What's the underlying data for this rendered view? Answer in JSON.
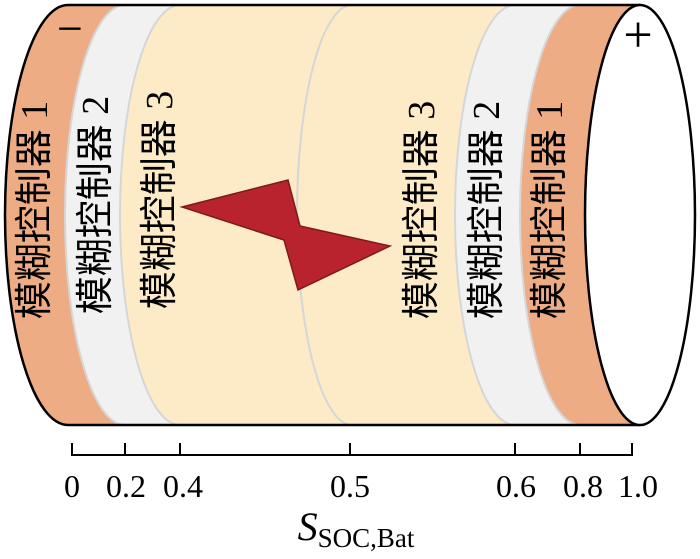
{
  "battery": {
    "negative_terminal": "−",
    "positive_terminal": "+"
  },
  "zones_left": [
    "模糊控制器 1",
    "模糊控制器 2",
    "模糊控制器 3"
  ],
  "zones_right": [
    "模糊控制器 3",
    "模糊控制器 2",
    "模糊控制器 1"
  ],
  "axis": {
    "ticks": [
      "0",
      "0.2",
      "0.4",
      "0.5",
      "0.6",
      "0.8",
      "1.0"
    ],
    "label": {
      "symbol": "S",
      "subscript": "SOC,Bat"
    }
  },
  "icons": {
    "center": "lightning-bolt-icon"
  },
  "colors": {
    "zone1": "#eeac85",
    "zone2": "#f1f1f1",
    "zone3": "#fcebc6",
    "bolt": "#b8232e",
    "face": "#ffffff"
  }
}
